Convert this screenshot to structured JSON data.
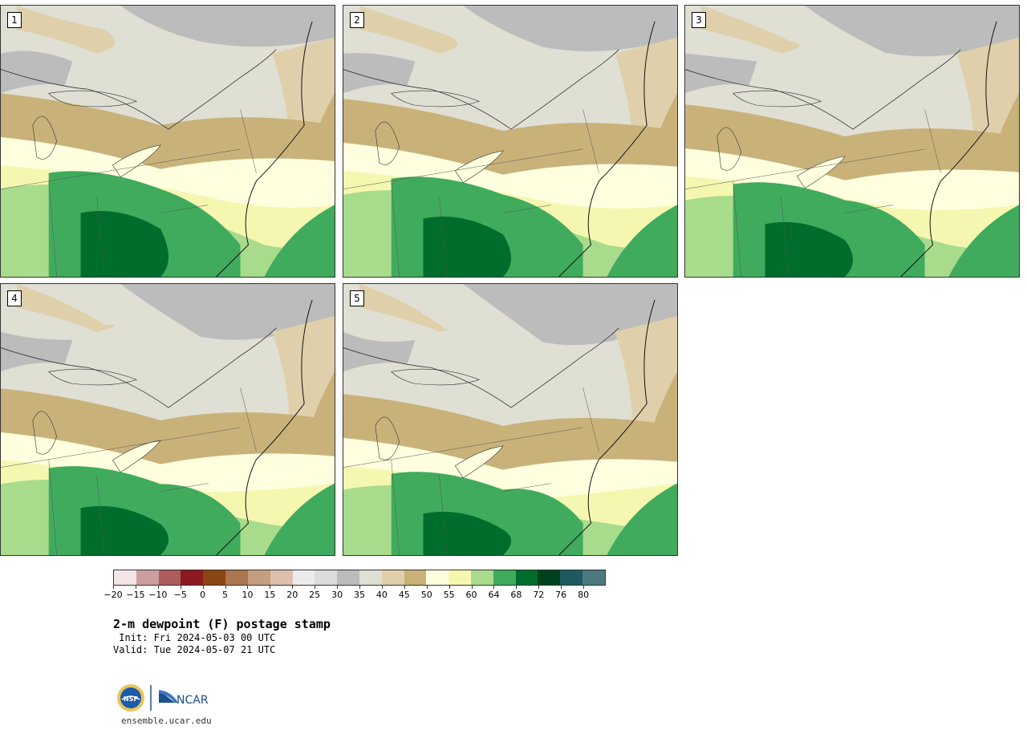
{
  "panels": [
    {
      "label": "1"
    },
    {
      "label": "2"
    },
    {
      "label": "3"
    },
    {
      "label": "4"
    },
    {
      "label": "5"
    }
  ],
  "colorbar": {
    "colors": [
      "#f2e6e6",
      "#cc9e9e",
      "#ad5c5c",
      "#8c1a20",
      "#8b4513",
      "#ab7550",
      "#c59e82",
      "#ddbfae",
      "#ebebeb",
      "#dcdcdc",
      "#bcbcbc",
      "#e0dfd4",
      "#dfd0ab",
      "#c9b27a",
      "#ffffe0",
      "#f5f7b0",
      "#a8dc8c",
      "#40ab5d",
      "#006d2c",
      "#00401b",
      "#1e5a5f",
      "#4a7a80"
    ],
    "tick_labels": [
      "−20",
      "−15",
      "−10",
      "−5",
      "0",
      "5",
      "10",
      "15",
      "20",
      "25",
      "30",
      "35",
      "40",
      "45",
      "50",
      "55",
      "60",
      "64",
      "68",
      "72",
      "76",
      "80"
    ]
  },
  "title": {
    "main": "2-m dewpoint (F) postage stamp",
    "init": " Init: Fri 2024-05-03 00 UTC",
    "valid": "Valid: Tue 2024-05-07 21 UTC"
  },
  "footer": {
    "url": "ensemble.ucar.edu",
    "nsf_logo_text": "NSF",
    "ncar_logo_text": "NCAR"
  }
}
